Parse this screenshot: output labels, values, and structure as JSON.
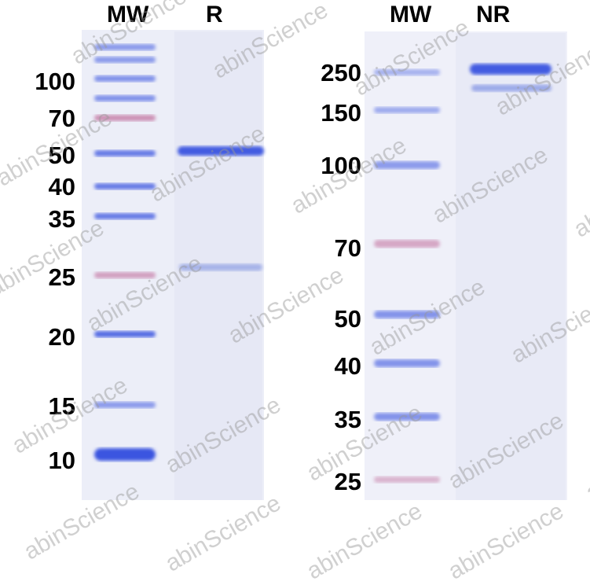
{
  "left_gel": {
    "lane_labels": [
      "MW",
      "R"
    ],
    "markers": [
      "100",
      "70",
      "50",
      "40",
      "35",
      "25",
      "20",
      "15",
      "10"
    ]
  },
  "right_gel": {
    "lane_labels": [
      "MW",
      "NR"
    ],
    "markers": [
      "250",
      "150",
      "100",
      "70",
      "50",
      "40",
      "35",
      "25"
    ]
  },
  "watermark": "abinScience",
  "colors": {
    "band_blue": "#3a55e0",
    "band_pink": "#c06a9a",
    "gel_bg": "#eceef8"
  }
}
